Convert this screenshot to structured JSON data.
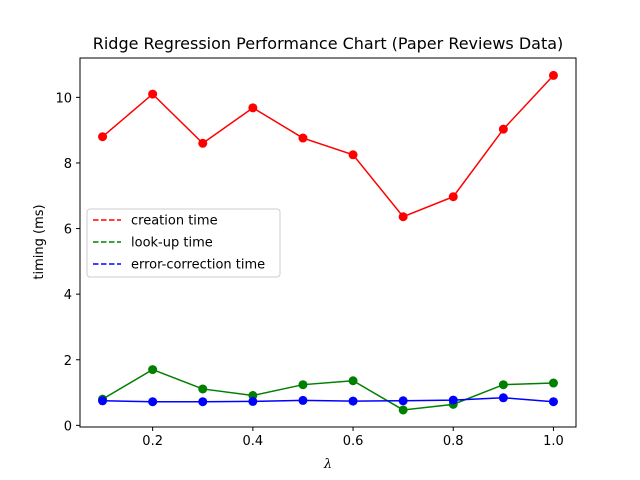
{
  "chart_data": {
    "type": "line",
    "title": "Ridge Regression Performance Chart (Paper Reviews Data)",
    "xlabel": "λ",
    "ylabel": "timing (ms)",
    "xlim": [
      0.055,
      1.045
    ],
    "ylim": [
      -0.05,
      11.2
    ],
    "xticks": [
      0.2,
      0.4,
      0.6,
      0.8,
      1.0
    ],
    "xtick_labels": [
      "0.2",
      "0.4",
      "0.6",
      "0.8",
      "1.0"
    ],
    "yticks": [
      0,
      2,
      4,
      6,
      8,
      10
    ],
    "ytick_labels": [
      "0",
      "2",
      "4",
      "6",
      "8",
      "10"
    ],
    "grid": false,
    "legend_position": "center-left",
    "x": [
      0.1,
      0.2,
      0.3,
      0.4,
      0.5,
      0.6,
      0.7,
      0.8,
      0.9,
      1.0
    ],
    "series": [
      {
        "name": "creation time",
        "color": "#ff0000",
        "values": [
          8.8,
          10.1,
          8.6,
          9.68,
          8.76,
          8.25,
          6.36,
          6.97,
          9.03,
          10.67
        ]
      },
      {
        "name": "look-up time",
        "color": "#008000",
        "values": [
          0.8,
          1.7,
          1.11,
          0.91,
          1.24,
          1.36,
          0.47,
          0.64,
          1.24,
          1.29
        ]
      },
      {
        "name": "error-correction time",
        "color": "#0000ff",
        "values": [
          0.75,
          0.72,
          0.72,
          0.73,
          0.76,
          0.74,
          0.75,
          0.77,
          0.84,
          0.72
        ]
      }
    ]
  }
}
